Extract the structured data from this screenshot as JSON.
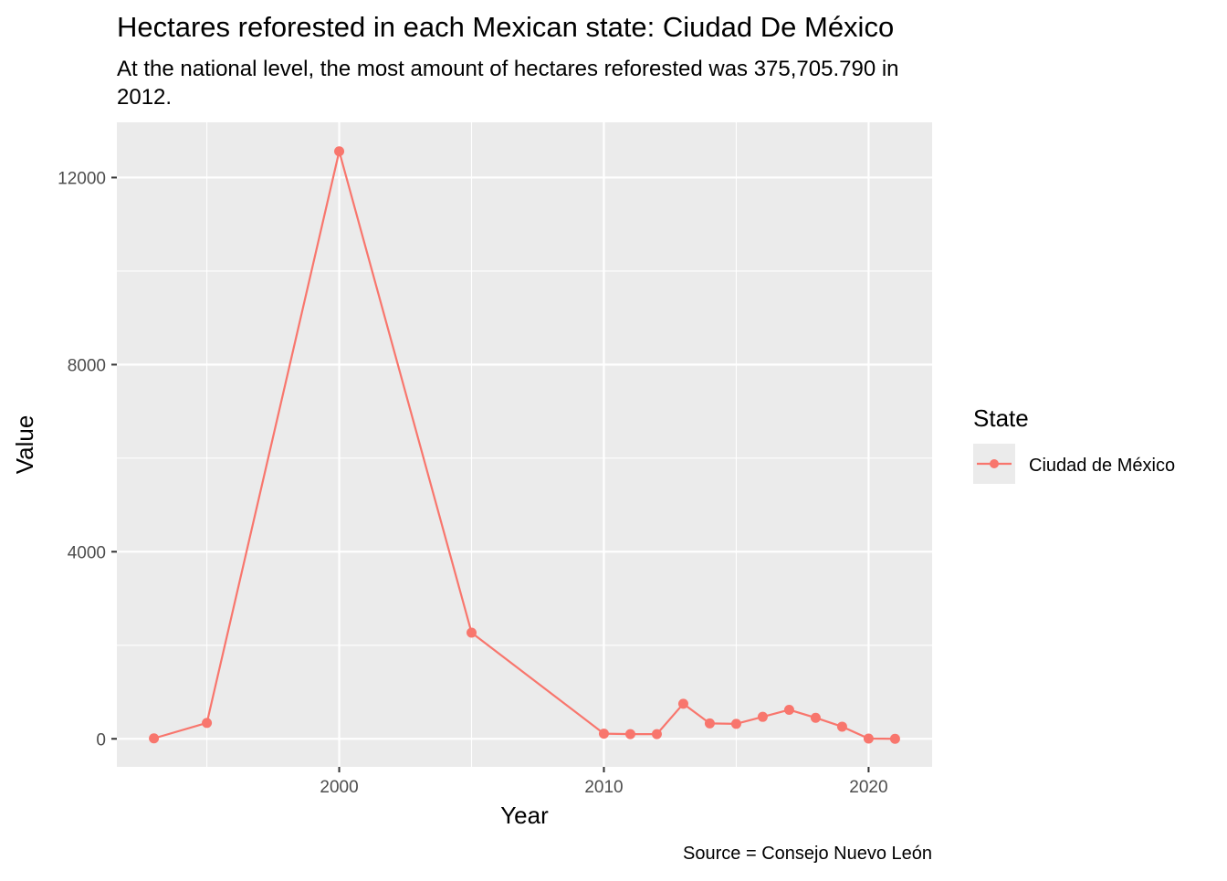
{
  "chart_data": {
    "type": "line",
    "title": "Hectares reforested in each Mexican state: Ciudad De México",
    "subtitle_lines": [
      "At the national level, the most amount of hectares reforested was 375,705.790 in",
      "2012."
    ],
    "caption": "Source = Consejo Nuevo León",
    "xlabel": "Year",
    "ylabel": "Value",
    "x_ticks": [
      2000,
      2010,
      2020
    ],
    "y_ticks": [
      0,
      4000,
      8000,
      12000
    ],
    "xlim": [
      1991.6,
      2022.4
    ],
    "ylim": [
      -600,
      13180
    ],
    "grid": true,
    "legend": {
      "title": "State",
      "position": "right"
    },
    "series": [
      {
        "name": "Ciudad de México",
        "color": "#F8766D",
        "x": [
          1993,
          1995,
          2000,
          2005,
          2010,
          2011,
          2012,
          2013,
          2014,
          2015,
          2016,
          2017,
          2018,
          2019,
          2020,
          2021
        ],
        "y": [
          10,
          340,
          12560,
          2270,
          110,
          100,
          100,
          750,
          330,
          320,
          470,
          620,
          450,
          260,
          5,
          0
        ]
      }
    ]
  }
}
